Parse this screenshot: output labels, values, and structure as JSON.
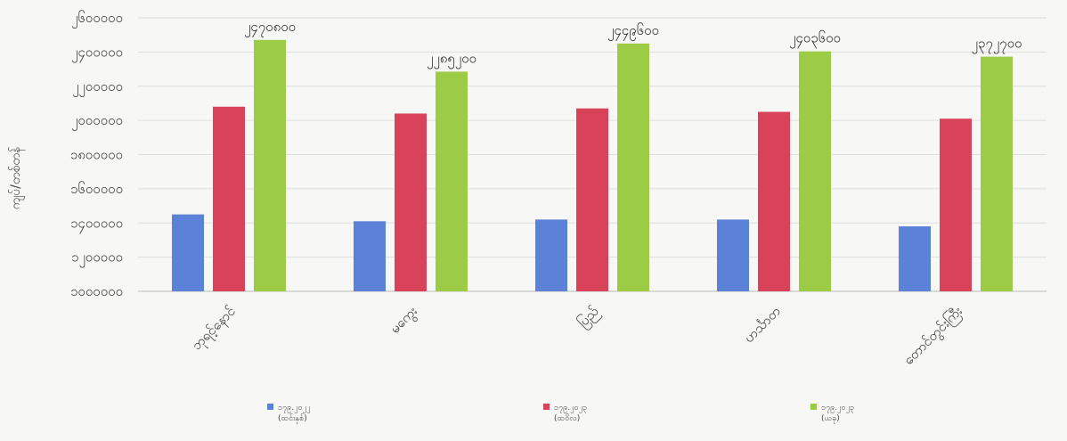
{
  "chart_data": {
    "type": "bar",
    "ylabel": "ကျပ်/တစ်တန်",
    "y_ticks": [
      "၂၆၀၀၀၀၀",
      "၂၄၀၀၀၀၀",
      "၂၂၀၀၀၀၀",
      "၂၀၀၀၀၀၀",
      "၁၈၀၀၀၀၀",
      "၁၆၀၀၀၀၀",
      "၁၄၀၀၀၀၀",
      "၁၂၀၀၀၀၀",
      "၁၀၀၀၀၀၀"
    ],
    "ylim": [
      1000000,
      2600000
    ],
    "categories": [
      "ဘုရင့်နောင်",
      "မကွေး",
      "ပြည်",
      "ဟင်္သာတ",
      "တောင်တွင်းကြီး"
    ],
    "series": [
      {
        "name": "၁၇၉.၂၀၂၂ (ထင်းနှစ်)",
        "color": "#5b82d6",
        "values": [
          1450000,
          1410000,
          1420000,
          1420000,
          1380000
        ]
      },
      {
        "name": "၁၇၉.၂၀၂၃ (ထဝိလ)",
        "color": "#d8435a",
        "values": [
          2080000,
          2040000,
          2070000,
          2050000,
          2010000
        ]
      },
      {
        "name": "၁၇၉.၂၀၂၃ (ယခု)",
        "color": "#9ccb45",
        "values": [
          2470800,
          2285200,
          2449600,
          2403600,
          2372700
        ]
      }
    ],
    "data_labels": [
      "၂၄၇၀၈၀၀",
      "၂၂၈၅၂၀၀",
      "၂၄၄၉၆၀၀",
      "၂၄၀၃၆၀၀",
      "၂၃၇၂၇၀၀"
    ],
    "grid": true,
    "legend_position": "bottom"
  }
}
